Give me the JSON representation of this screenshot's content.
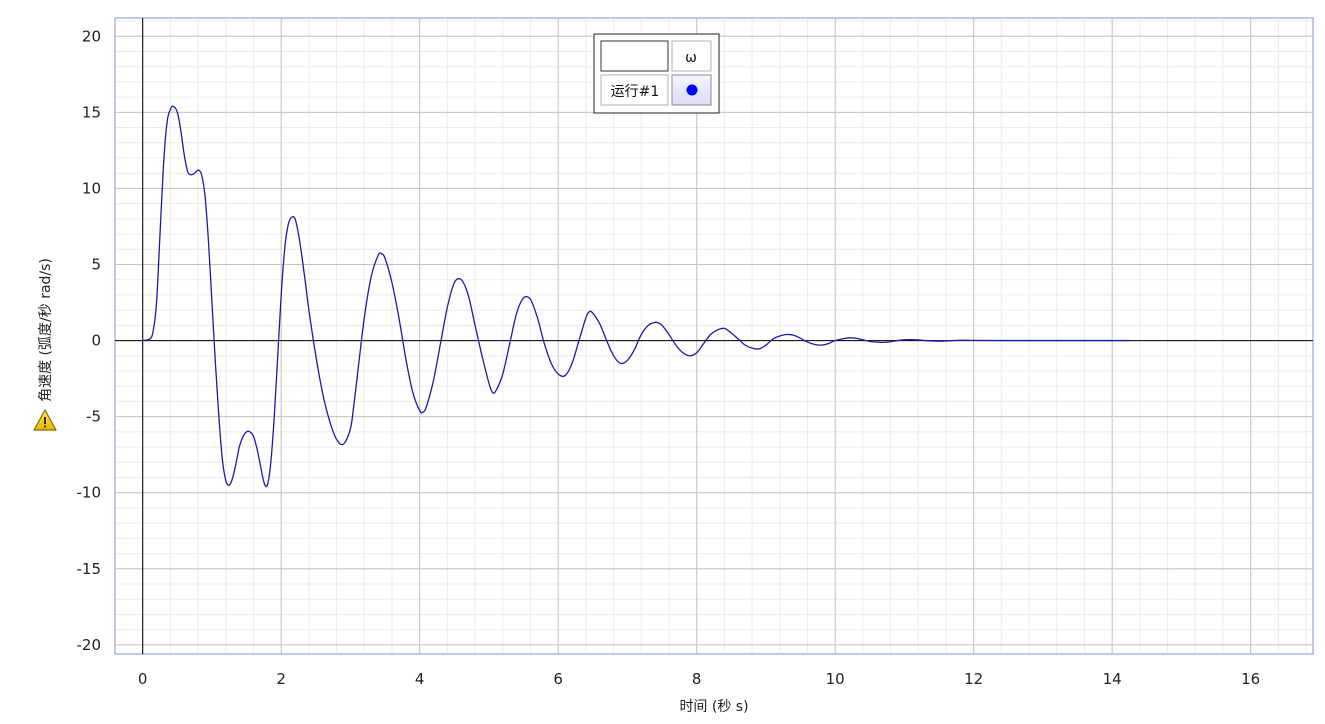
{
  "chart_data": {
    "type": "line",
    "xlabel": "时间 (秒 s)",
    "ylabel": "角速度 (弧度/秒 rad/s)",
    "xlim": [
      -0.4,
      16.9
    ],
    "ylim": [
      -20.6,
      21.2
    ],
    "x_ticks": [
      0,
      2,
      4,
      6,
      8,
      10,
      12,
      14,
      16
    ],
    "y_ticks": [
      20,
      15,
      10,
      5,
      0,
      -5,
      -10,
      -15,
      -20
    ],
    "x_tick_labels": [
      "0",
      "2",
      "4",
      "6",
      "8",
      "10",
      "12",
      "14",
      "16"
    ],
    "y_tick_labels": [
      "20",
      "15",
      "10",
      "5",
      "0",
      "-5",
      "-10",
      "-15",
      "-20"
    ],
    "minor_grid_step_x": 0.4,
    "minor_grid_step_y": 1,
    "grid": true,
    "legend_position": "top-center",
    "colors": {
      "series": "#1a1aaa",
      "legend_marker": "#0000ff",
      "major_grid": "#c4c4c4",
      "minor_grid": "#ececec",
      "plot_border": "#a8b8e0",
      "axis_line": "#000000"
    },
    "legend": {
      "header": "ω",
      "run_label": "运行#1"
    },
    "warning_icon": "warning-triangle-icon",
    "series": [
      {
        "name": "运行#1",
        "x": [
          0,
          0.1,
          0.15,
          0.2,
          0.25,
          0.3,
          0.35,
          0.4,
          0.44,
          0.5,
          0.55,
          0.6,
          0.65,
          0.7,
          0.75,
          0.8,
          0.85,
          0.9,
          0.95,
          1.0,
          1.05,
          1.1,
          1.15,
          1.2,
          1.25,
          1.3,
          1.35,
          1.4,
          1.45,
          1.5,
          1.55,
          1.6,
          1.65,
          1.7,
          1.75,
          1.8,
          1.85,
          1.9,
          1.95,
          2.0,
          2.05,
          2.1,
          2.15,
          2.2,
          2.25,
          2.3,
          2.35,
          2.4,
          2.5,
          2.6,
          2.7,
          2.8,
          2.9,
          3.0,
          3.05,
          3.1,
          3.2,
          3.3,
          3.4,
          3.45,
          3.5,
          3.6,
          3.7,
          3.8,
          3.9,
          4.0,
          4.05,
          4.1,
          4.2,
          4.3,
          4.4,
          4.5,
          4.6,
          4.7,
          4.8,
          4.9,
          5.0,
          5.05,
          5.1,
          5.2,
          5.3,
          5.4,
          5.5,
          5.6,
          5.7,
          5.8,
          5.9,
          6.0,
          6.1,
          6.2,
          6.3,
          6.4,
          6.45,
          6.5,
          6.6,
          6.7,
          6.8,
          6.9,
          7.0,
          7.1,
          7.2,
          7.3,
          7.4,
          7.45,
          7.5,
          7.6,
          7.7,
          7.8,
          7.9,
          8.0,
          8.1,
          8.2,
          8.3,
          8.4,
          8.5,
          8.6,
          8.7,
          8.8,
          8.9,
          9.0,
          9.1,
          9.2,
          9.3,
          9.4,
          9.5,
          9.6,
          9.7,
          9.8,
          9.9,
          10.0,
          10.1,
          10.2,
          10.3,
          10.4,
          10.5,
          10.6,
          10.7,
          10.8,
          10.9,
          11.0,
          11.1,
          11.2,
          11.3,
          11.4,
          11.5,
          11.6,
          11.7,
          11.8,
          11.9,
          12.0,
          12.5,
          13.0,
          13.5,
          14.0,
          14.25
        ],
        "y": [
          0,
          0.1,
          0.6,
          2.5,
          7.0,
          11.5,
          14.3,
          15.2,
          15.4,
          15.0,
          13.8,
          12.2,
          11.1,
          10.9,
          11.0,
          11.2,
          10.9,
          9.5,
          6.5,
          2.5,
          -1.5,
          -5.0,
          -7.8,
          -9.2,
          -9.5,
          -9.0,
          -8.0,
          -6.9,
          -6.3,
          -6.0,
          -6.0,
          -6.3,
          -7.1,
          -8.2,
          -9.3,
          -9.5,
          -8.0,
          -5.0,
          -1.0,
          3.0,
          6.0,
          7.6,
          8.1,
          8.0,
          7.0,
          5.5,
          3.8,
          2.0,
          -1.0,
          -3.5,
          -5.3,
          -6.5,
          -6.8,
          -5.8,
          -4.2,
          -2.3,
          1.5,
          4.2,
          5.6,
          5.7,
          5.4,
          3.8,
          1.5,
          -1.2,
          -3.4,
          -4.6,
          -4.7,
          -4.3,
          -2.6,
          -0.2,
          2.2,
          3.8,
          4.0,
          3.0,
          1.0,
          -1.0,
          -2.8,
          -3.4,
          -3.3,
          -2.2,
          -0.2,
          1.8,
          2.8,
          2.7,
          1.5,
          -0.2,
          -1.5,
          -2.2,
          -2.3,
          -1.5,
          0,
          1.5,
          1.9,
          1.8,
          1.1,
          0,
          -1.0,
          -1.5,
          -1.3,
          -0.6,
          0.4,
          1.0,
          1.2,
          1.15,
          1.0,
          0.4,
          -0.3,
          -0.8,
          -1.0,
          -0.8,
          -0.2,
          0.4,
          0.7,
          0.8,
          0.5,
          0.1,
          -0.3,
          -0.5,
          -0.55,
          -0.3,
          0.1,
          0.3,
          0.4,
          0.35,
          0.15,
          -0.1,
          -0.25,
          -0.3,
          -0.2,
          0,
          0.1,
          0.18,
          0.15,
          0.05,
          -0.05,
          -0.1,
          -0.12,
          -0.08,
          0,
          0.05,
          0.06,
          0.04,
          0,
          -0.03,
          -0.04,
          -0.03,
          0,
          0.02,
          0.02,
          0.01,
          0,
          0,
          0,
          0,
          0
        ]
      }
    ]
  }
}
